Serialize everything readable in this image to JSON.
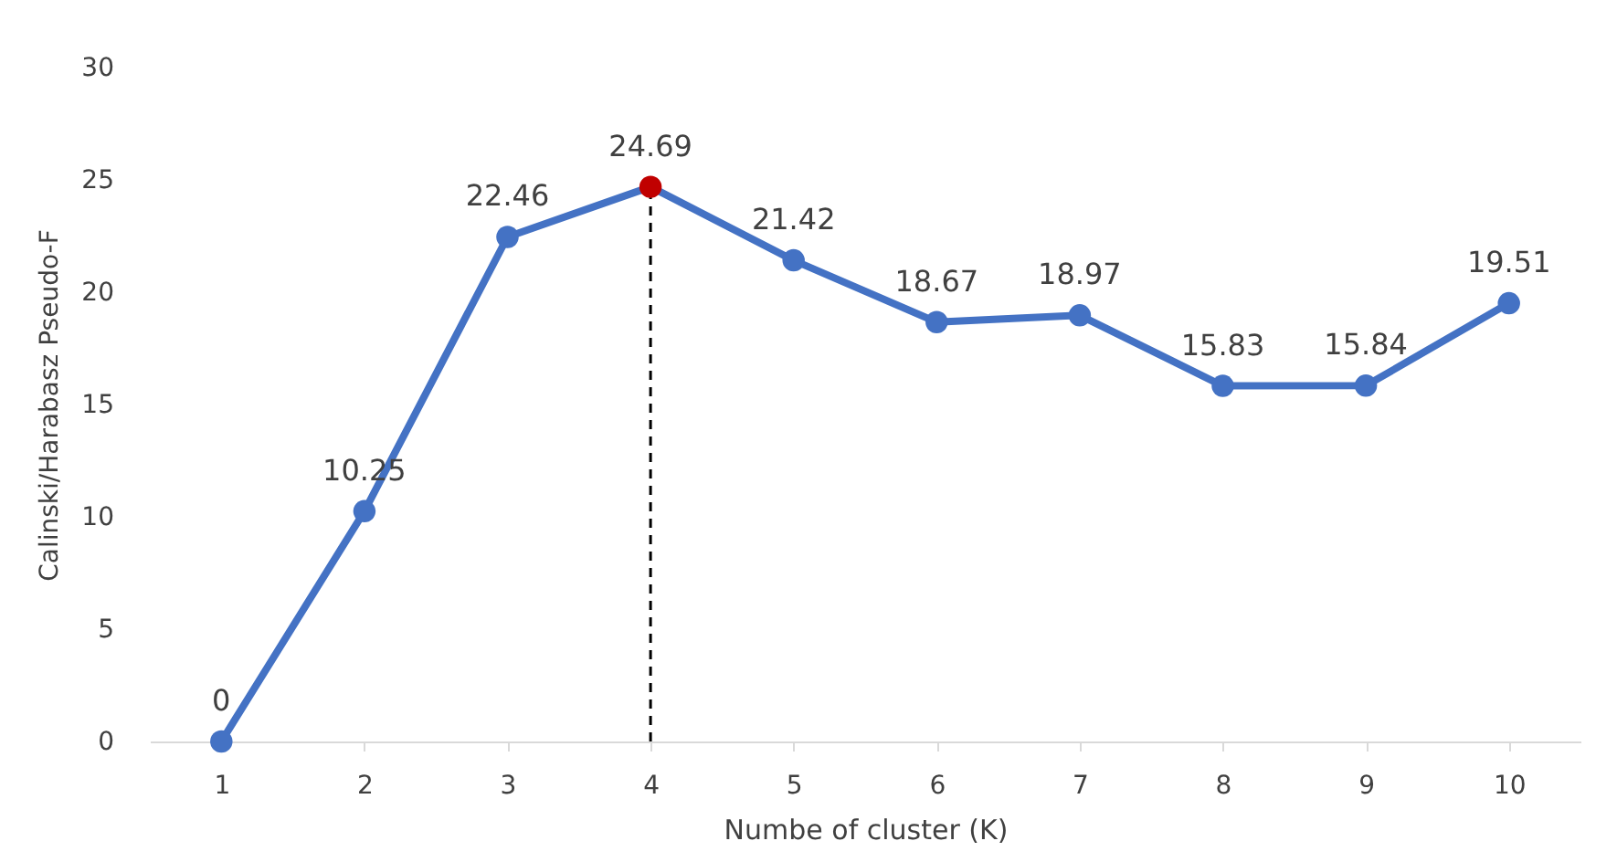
{
  "chart_data": {
    "type": "line",
    "xlabel": "Numbe of cluster (K)",
    "ylabel": "Calinski/Harabasz Pseudo-F",
    "categories": [
      "1",
      "2",
      "3",
      "4",
      "5",
      "6",
      "7",
      "8",
      "9",
      "10"
    ],
    "series": [
      {
        "color": "#4472c4",
        "colors": [
          "#4472c4",
          "#4472c4",
          "#4472c4",
          "#c00000",
          "#4472c4",
          "#4472c4",
          "#4472c4",
          "#4472c4",
          "#4472c4",
          "#4472c4"
        ],
        "values": [
          0,
          10.25,
          22.46,
          24.69,
          21.42,
          18.67,
          18.97,
          15.83,
          15.84,
          19.51
        ]
      }
    ],
    "ylim": [
      0,
      30
    ],
    "yticks": [
      0,
      5,
      10,
      15,
      20,
      25,
      30
    ],
    "grid": false,
    "marker": "circle",
    "line_style": "solid",
    "data_labels": true,
    "ref_lines": [
      {
        "axis": "x",
        "value": "4",
        "color": "#000000",
        "line_style": "dashed"
      }
    ]
  }
}
